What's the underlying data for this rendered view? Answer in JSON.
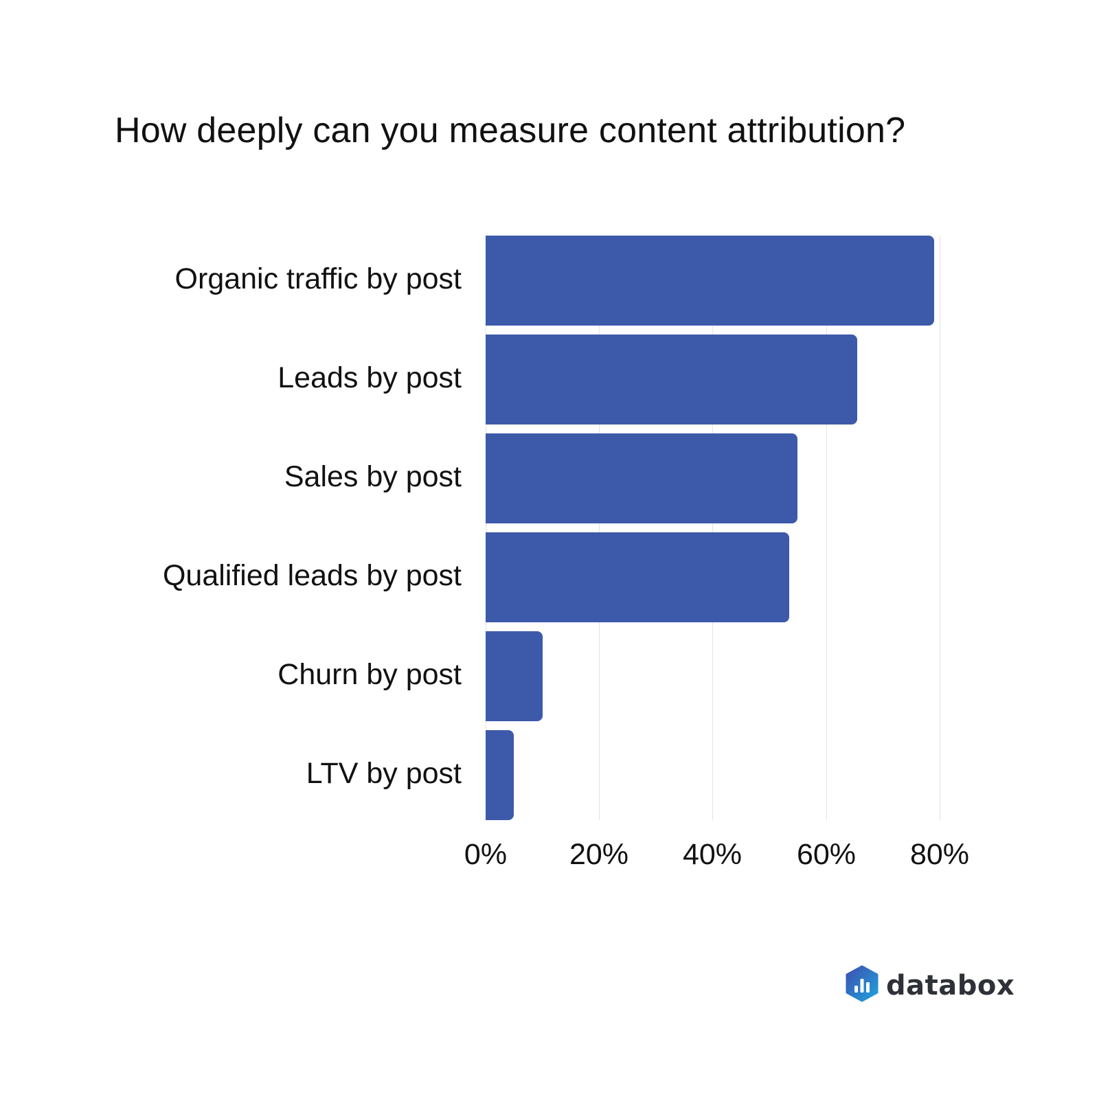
{
  "title": "How deeply can you measure content attribution?",
  "brand": {
    "name": "databox",
    "bar_color": "#3d5aaa",
    "logo_gradient": [
      "#3d4fb0",
      "#1fa3dc"
    ],
    "text_color": "#2e3138"
  },
  "chart_data": {
    "type": "bar",
    "orientation": "horizontal",
    "title": "How deeply can you measure content attribution?",
    "categories": [
      "Organic traffic by post",
      "Leads by post",
      "Sales by post",
      "Qualified leads by post",
      "Churn by post",
      "LTV by post"
    ],
    "values": [
      79,
      65.5,
      55,
      53.5,
      10,
      5
    ],
    "value_unit": "%",
    "xlabel": "",
    "ylabel": "",
    "xlim": [
      0,
      80
    ],
    "x_ticks": [
      "0%",
      "20%",
      "40%",
      "60%",
      "80%"
    ],
    "grid": "vertical",
    "legend": "none",
    "color": "#3d5aaa"
  },
  "axis": {
    "ticks": [
      "0%",
      "20%",
      "40%",
      "60%",
      "80%"
    ]
  }
}
